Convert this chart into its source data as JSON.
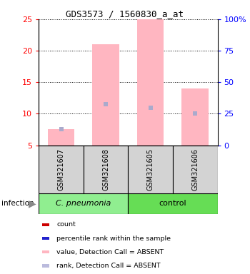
{
  "title": "GDS3573 / 1560830_a_at",
  "samples": [
    "GSM321607",
    "GSM321608",
    "GSM321605",
    "GSM321606"
  ],
  "ylim_left": [
    5,
    25
  ],
  "ylim_right": [
    0,
    100
  ],
  "yticks_left": [
    5,
    10,
    15,
    20,
    25
  ],
  "yticks_right": [
    0,
    25,
    50,
    75,
    100
  ],
  "ytick_labels_right": [
    "0",
    "25",
    "50",
    "75",
    "100%"
  ],
  "bar_bottom": 5,
  "bar_values": [
    7.5,
    21.0,
    25.0,
    14.0
  ],
  "rank_values": [
    7.5,
    11.5,
    11.0,
    10.0
  ],
  "bar_color": "#FFB6C1",
  "rank_color": "#AAAACC",
  "group_labels": [
    "C. pneumonia",
    "control"
  ],
  "group_colors": [
    "#90EE90",
    "#66DD55"
  ],
  "legend_colors": [
    "#CC0000",
    "#2222CC",
    "#FFB6C1",
    "#BBBBDD"
  ],
  "legend_labels": [
    "count",
    "percentile rank within the sample",
    "value, Detection Call = ABSENT",
    "rank, Detection Call = ABSENT"
  ],
  "infection_label": "infection"
}
